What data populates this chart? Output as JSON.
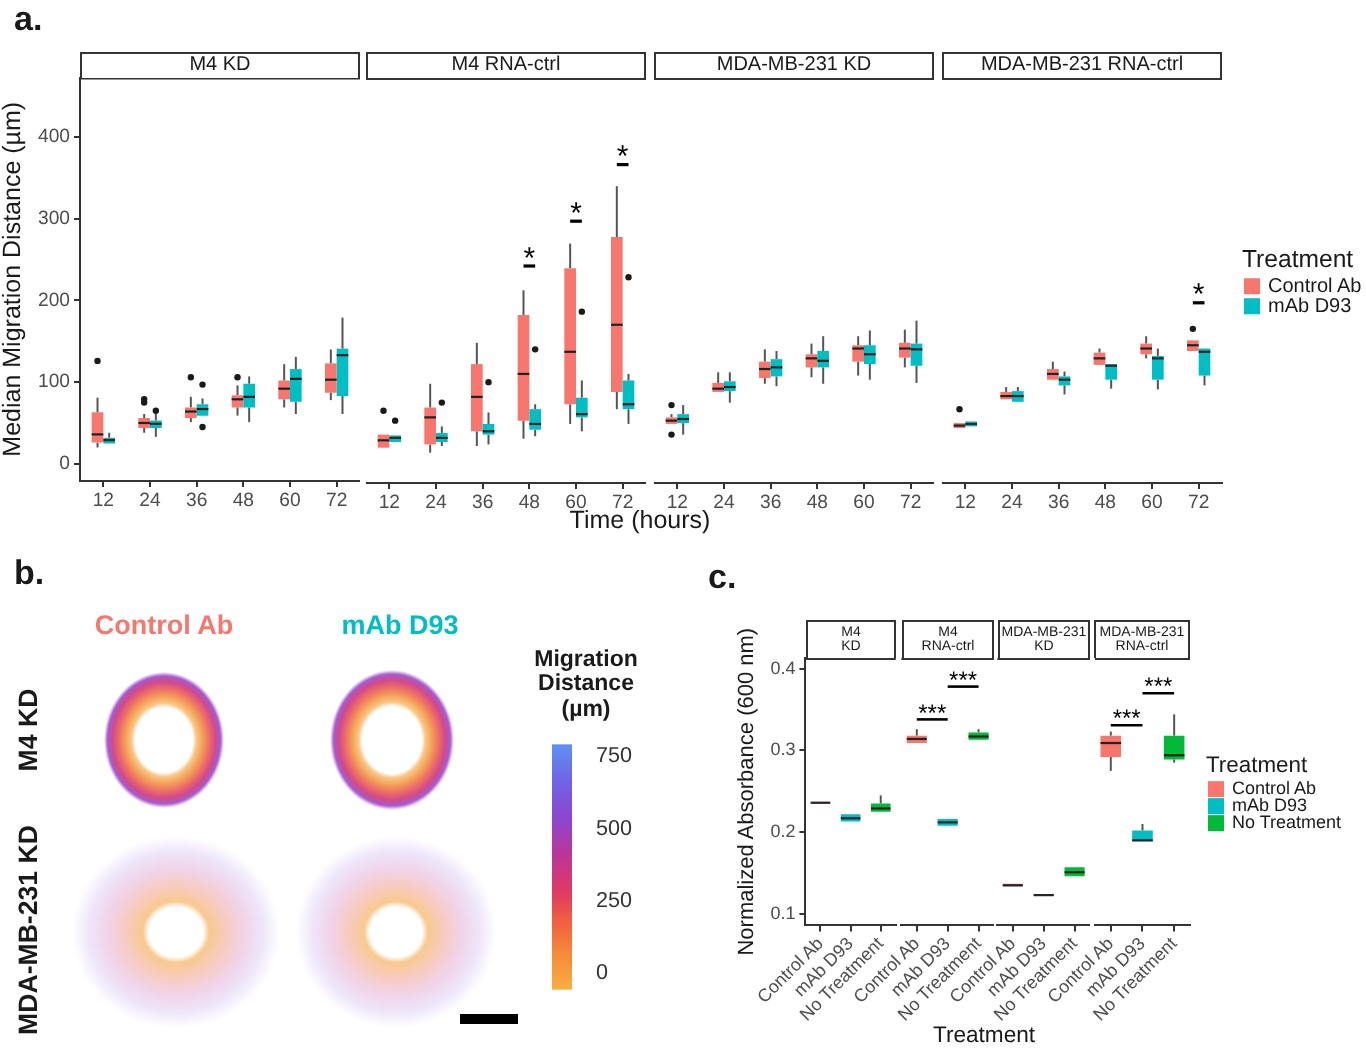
{
  "chart_data": [
    {
      "type": "box",
      "title": "M4 KD",
      "annotations": [
        "a."
      ],
      "ylabel": "Median Migration Distance (µm)",
      "categories": [
        "12",
        "24",
        "36",
        "48",
        "60",
        "72"
      ],
      "ylim": [
        -21,
        473
      ],
      "yticks": [
        0,
        100,
        200,
        300,
        400
      ],
      "series": [
        {
          "color": "#f8766d",
          "boxes": [
            {
              "low": 20,
              "q1": 26,
              "median": 36,
              "q3": 63,
              "high": 81,
              "outliers": [
                126
              ]
            },
            {
              "low": 38,
              "q1": 44,
              "median": 50,
              "q3": 56,
              "high": 61,
              "outliers": [
                75,
                79
              ]
            },
            {
              "low": 51,
              "q1": 56,
              "median": 64,
              "q3": 69,
              "high": 82,
              "outliers": [
                106
              ]
            },
            {
              "low": 59,
              "q1": 69,
              "median": 79,
              "q3": 84,
              "high": 96,
              "outliers": [
                106
              ]
            },
            {
              "low": 69,
              "q1": 79,
              "median": 92,
              "q3": 102,
              "high": 122
            },
            {
              "low": 78,
              "q1": 87,
              "median": 103,
              "q3": 123,
              "high": 140
            }
          ]
        },
        {
          "color": "#00bfc4",
          "boxes": [
            {
              "low": 22,
              "q1": 25,
              "median": 29,
              "q3": 32,
              "high": 38
            },
            {
              "low": 33,
              "q1": 44,
              "median": 49,
              "q3": 53,
              "high": 61,
              "outliers": [
                65
              ]
            },
            {
              "low": 56,
              "q1": 59,
              "median": 67,
              "q3": 73,
              "high": 80,
              "outliers": [
                45,
                97
              ]
            },
            {
              "low": 51,
              "q1": 69,
              "median": 82,
              "q3": 98,
              "high": 107
            },
            {
              "low": 61,
              "q1": 76,
              "median": 104,
              "q3": 116,
              "high": 131
            },
            {
              "low": 61,
              "q1": 83,
              "median": 133,
              "q3": 141,
              "high": 179
            }
          ]
        }
      ]
    },
    {
      "type": "box",
      "title": "M4 RNA-ctrl",
      "annotations": [
        "*",
        "*",
        "*"
      ],
      "xlabel": "Time (hours)",
      "categories": [
        "12",
        "24",
        "36",
        "48",
        "60",
        "72"
      ],
      "ylim": [
        -21,
        473
      ],
      "tick_labels": "x",
      "series": [
        {
          "color": "#f8766d",
          "boxes": [
            {
              "low": 20,
              "q1": 22,
              "median": 31,
              "q3": 38,
              "high": 40,
              "outliers": [
                67
              ]
            },
            {
              "low": 16,
              "q1": 26,
              "median": 59,
              "q3": 71,
              "high": 100
            },
            {
              "low": 24,
              "q1": 42,
              "median": 84,
              "q3": 124,
              "high": 150
            },
            {
              "low": 33,
              "q1": 55,
              "median": 112,
              "q3": 184,
              "high": 214
            },
            {
              "low": 51,
              "q1": 75,
              "median": 139,
              "q3": 241,
              "high": 271
            },
            {
              "low": 69,
              "q1": 90,
              "median": 172,
              "q3": 279,
              "high": 341
            }
          ]
        },
        {
          "color": "#00bfc4",
          "boxes": [
            {
              "low": 26,
              "q1": 29,
              "median": 34,
              "q3": 37,
              "high": 38,
              "outliers": [
                55
              ]
            },
            {
              "low": 24,
              "q1": 29,
              "median": 34,
              "q3": 40,
              "high": 48,
              "outliers": [
                77
              ]
            },
            {
              "low": 26,
              "q1": 38,
              "median": 42,
              "q3": 51,
              "high": 65,
              "outliers": [
                102
              ]
            },
            {
              "low": 36,
              "q1": 44,
              "median": 51,
              "q3": 69,
              "high": 75,
              "outliers": [
                142
              ]
            },
            {
              "low": 42,
              "q1": 59,
              "median": 63,
              "q3": 83,
              "high": 104,
              "outliers": [
                188
              ]
            },
            {
              "low": 51,
              "q1": 69,
              "median": 75,
              "q3": 104,
              "high": 112,
              "outliers": [
                230
              ]
            }
          ]
        }
      ]
    },
    {
      "type": "box",
      "title": "MDA-MB-231 KD",
      "categories": [
        "12",
        "24",
        "36",
        "48",
        "60",
        "72"
      ],
      "ylim": [
        -21,
        473
      ],
      "tick_labels": "x",
      "series": [
        {
          "color": "#f8766d",
          "boxes": [
            {
              "low": 48,
              "q1": 51,
              "median": 55,
              "q3": 59,
              "high": 63,
              "outliers": [
                38,
                74
              ]
            },
            {
              "low": 87,
              "q1": 90,
              "median": 94,
              "q3": 101,
              "high": 114
            },
            {
              "low": 100,
              "q1": 107,
              "median": 118,
              "q3": 127,
              "high": 142
            },
            {
              "low": 108,
              "q1": 120,
              "median": 131,
              "q3": 136,
              "high": 149
            },
            {
              "low": 110,
              "q1": 127,
              "median": 143,
              "q3": 147,
              "high": 158
            },
            {
              "low": 120,
              "q1": 132,
              "median": 143,
              "q3": 150,
              "high": 166
            }
          ]
        },
        {
          "color": "#00bfc4",
          "boxes": [
            {
              "low": 38,
              "q1": 52,
              "median": 57,
              "q3": 63,
              "high": 74
            },
            {
              "low": 77,
              "q1": 91,
              "median": 96,
              "q3": 103,
              "high": 114
            },
            {
              "low": 97,
              "q1": 109,
              "median": 120,
              "q3": 130,
              "high": 140
            },
            {
              "low": 100,
              "q1": 120,
              "median": 128,
              "q3": 140,
              "high": 158
            },
            {
              "low": 105,
              "q1": 124,
              "median": 136,
              "q3": 147,
              "high": 165
            },
            {
              "low": 101,
              "q1": 122,
              "median": 142,
              "q3": 149,
              "high": 177
            }
          ]
        }
      ]
    },
    {
      "type": "box",
      "title": "MDA-MB-231 RNA-ctrl",
      "annotations": [
        "*"
      ],
      "categories": [
        "12",
        "24",
        "36",
        "48",
        "60",
        "72"
      ],
      "ylim": [
        -21,
        473
      ],
      "tick_labels": "x",
      "legend": "right",
      "legend_title": "Treatment",
      "series": [
        {
          "name": "Control Ab",
          "color": "#f8766d",
          "boxes": [
            {
              "low": 44,
              "q1": 46,
              "median": 49,
              "q3": 52,
              "high": 53,
              "outliers": [
                69
              ]
            },
            {
              "low": 79,
              "q1": 81,
              "median": 85,
              "q3": 90,
              "high": 96
            },
            {
              "low": 102,
              "q1": 105,
              "median": 112,
              "q3": 118,
              "high": 127
            },
            {
              "low": 120,
              "q1": 123,
              "median": 131,
              "q3": 138,
              "high": 143
            },
            {
              "low": 131,
              "q1": 136,
              "median": 143,
              "q3": 149,
              "high": 158
            },
            {
              "low": 139,
              "q1": 140,
              "median": 147,
              "q3": 153,
              "high": 155,
              "outliers": [
                167
              ]
            }
          ]
        },
        {
          "name": "mAb D93",
          "color": "#00bfc4",
          "boxes": [
            {
              "low": 46,
              "q1": 48,
              "median": 51,
              "q3": 54,
              "high": 55
            },
            {
              "low": 76,
              "q1": 78,
              "median": 85,
              "q3": 91,
              "high": 96
            },
            {
              "low": 87,
              "q1": 98,
              "median": 105,
              "q3": 109,
              "high": 115
            },
            {
              "low": 94,
              "q1": 105,
              "median": 122,
              "q3": 124,
              "high": 126
            },
            {
              "low": 93,
              "q1": 105,
              "median": 131,
              "q3": 134,
              "high": 143
            },
            {
              "low": 98,
              "q1": 110,
              "median": 139,
              "q3": 143,
              "high": 145
            }
          ]
        }
      ]
    },
    {
      "type": "heatmap",
      "annotations": [
        "b."
      ],
      "categories": [
        "Control Ab",
        "mAb D93"
      ],
      "colors": [
        "#f8766d",
        "#00bfc4"
      ],
      "y_categories": [
        "M4 KD",
        "MDA-MB-231 KD"
      ],
      "cells": [
        [
          null,
          null
        ],
        [
          null,
          null
        ]
      ],
      "clabel": "Migration Distance (µm)",
      "clim": [
        -55,
        790
      ],
      "cticks": [
        0,
        250,
        500,
        750
      ]
    },
    {
      "type": "box",
      "title": "M4 KD",
      "annotations": [
        "c."
      ],
      "ylabel": "Normalized Absorbance (600 nm)",
      "categories": [
        "Control Ab",
        "mAb D93",
        "No Treatment"
      ],
      "ylim": [
        0.086,
        0.413
      ],
      "yticks": [
        0.1,
        0.2,
        0.3,
        0.4
      ],
      "series": [
        {
          "color": "#f8766d",
          "boxes": [
            {
              "low": 0.234,
              "q1": 0.235,
              "median": 0.236,
              "q3": 0.236,
              "high": 0.237
            },
            null,
            null
          ]
        },
        {
          "color": "#00bfc4",
          "boxes": [
            null,
            {
              "low": 0.21,
              "q1": 0.213,
              "median": 0.217,
              "q3": 0.222,
              "high": 0.224
            },
            null
          ]
        },
        {
          "color": "#00ba38",
          "boxes": [
            null,
            null,
            {
              "low": 0.224,
              "q1": 0.225,
              "median": 0.229,
              "q3": 0.235,
              "high": 0.245
            }
          ]
        }
      ]
    },
    {
      "type": "box",
      "title": "M4 RNA-ctrl",
      "annotations": [
        "***",
        "***"
      ],
      "xlabel": "Treatment",
      "categories": [
        "Control Ab",
        "mAb D93",
        "No Treatment"
      ],
      "ylim": [
        0.086,
        0.413
      ],
      "tick_labels": "x",
      "series": [
        {
          "color": "#f8766d",
          "boxes": [
            {
              "low": 0.306,
              "q1": 0.309,
              "median": 0.314,
              "q3": 0.318,
              "high": 0.326
            },
            null,
            null
          ]
        },
        {
          "color": "#00bfc4",
          "boxes": [
            null,
            {
              "low": 0.206,
              "q1": 0.208,
              "median": 0.212,
              "q3": 0.216,
              "high": 0.219
            },
            null
          ]
        },
        {
          "color": "#00ba38",
          "boxes": [
            null,
            null,
            {
              "low": 0.313,
              "q1": 0.313,
              "median": 0.317,
              "q3": 0.322,
              "high": 0.326
            }
          ]
        }
      ]
    },
    {
      "type": "box",
      "title": "MDA-MB-231 KD",
      "categories": [
        "Control Ab",
        "mAb D93",
        "No Treatment"
      ],
      "ylim": [
        0.086,
        0.413
      ],
      "tick_labels": "x",
      "series": [
        {
          "color": "#f8766d",
          "boxes": [
            {
              "low": 0.133,
              "q1": 0.134,
              "median": 0.135,
              "q3": 0.137,
              "high": 0.138
            },
            null,
            null
          ]
        },
        {
          "color": "#00bfc4",
          "boxes": [
            null,
            {
              "low": 0.122,
              "q1": 0.122,
              "median": 0.123,
              "q3": 0.124,
              "high": 0.124
            },
            null
          ]
        },
        {
          "color": "#00ba38",
          "boxes": [
            null,
            null,
            {
              "low": 0.143,
              "q1": 0.146,
              "median": 0.151,
              "q3": 0.157,
              "high": 0.159
            }
          ]
        }
      ]
    },
    {
      "type": "box",
      "title": "MDA-MB-231 RNA-ctrl",
      "annotations": [
        "***",
        "***"
      ],
      "categories": [
        "Control Ab",
        "mAb D93",
        "No Treatment"
      ],
      "ylim": [
        0.086,
        0.413
      ],
      "tick_labels": "x",
      "legend": "right",
      "legend_title": "Treatment",
      "series": [
        {
          "name": "Control Ab",
          "color": "#f8766d",
          "boxes": [
            {
              "low": 0.275,
              "q1": 0.292,
              "median": 0.309,
              "q3": 0.318,
              "high": 0.323
            },
            null,
            null
          ]
        },
        {
          "name": "mAb D93",
          "color": "#00bfc4",
          "boxes": [
            null,
            {
              "low": 0.188,
              "q1": 0.189,
              "median": 0.19,
              "q3": 0.202,
              "high": 0.21
            },
            null
          ]
        },
        {
          "name": "No Treatment",
          "color": "#00ba38",
          "boxes": [
            null,
            null,
            {
              "low": 0.285,
              "q1": 0.289,
              "median": 0.294,
              "q3": 0.318,
              "high": 0.344
            }
          ]
        }
      ]
    }
  ]
}
